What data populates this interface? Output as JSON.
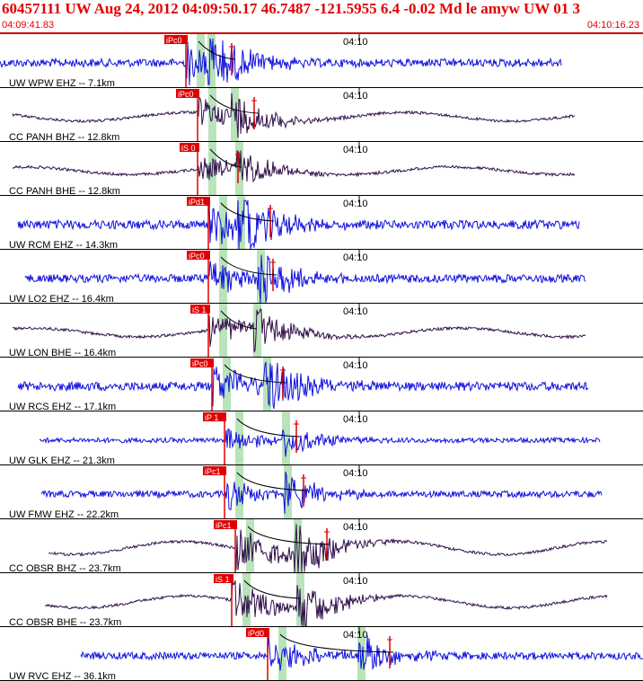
{
  "header": {
    "title": "60457111 UW Aug 24, 2012 04:09:50.17    46.7487 -121.5955  6.4 -0.02 Md le amyw UW 01   3",
    "start_time": "04:09:41.83",
    "end_time": "04:10:16.23"
  },
  "time_mark_label": "04:10",
  "colors": {
    "header_text": "#e00000",
    "trace_short_period": "#1010e0",
    "trace_broadband": "#30104a",
    "pick_box": "#e00000",
    "pick_line": "#e00000",
    "window_band": "#b9e3b9"
  },
  "traces": [
    {
      "label": "UW WPW EHZ -- 7.1km",
      "pick": "iPc0",
      "type": "ehz",
      "amp": 10
    },
    {
      "label": "CC PANH BHZ -- 12.8km",
      "pick": "iPc0",
      "type": "bb",
      "amp": 8
    },
    {
      "label": "CC PANH BHE -- 12.8km",
      "pick": "iS 0",
      "type": "bb",
      "amp": 7
    },
    {
      "label": "UW RCM EHZ -- 14.3km",
      "pick": "iPd1",
      "type": "ehz",
      "amp": 11
    },
    {
      "label": "UW LO2 EHZ -- 16.4km",
      "pick": "iPc0",
      "type": "ehz",
      "amp": 10
    },
    {
      "label": "UW LON BHE -- 16.4km",
      "pick": "iS 1",
      "type": "bb",
      "amp": 8
    },
    {
      "label": "UW RCS EHZ -- 17.1km",
      "pick": "iPc0",
      "type": "ehz",
      "amp": 11
    },
    {
      "label": "UW GLK EHZ -- 21.3km",
      "pick": "iP 1",
      "type": "ehz",
      "amp": 6
    },
    {
      "label": "UW FMW EHZ -- 22.2km",
      "pick": "iPc1",
      "type": "ehz",
      "amp": 8
    },
    {
      "label": "CC OBSR BHZ -- 23.7km",
      "pick": "iPc1",
      "type": "bb",
      "amp": 12
    },
    {
      "label": "CC OBSR BHE -- 23.7km",
      "pick": "iS 1",
      "type": "bb",
      "amp": 11
    },
    {
      "label": "UW RVC EHZ -- 36.1km",
      "pick": "iPd0",
      "type": "ehz",
      "amp": 9
    }
  ]
}
